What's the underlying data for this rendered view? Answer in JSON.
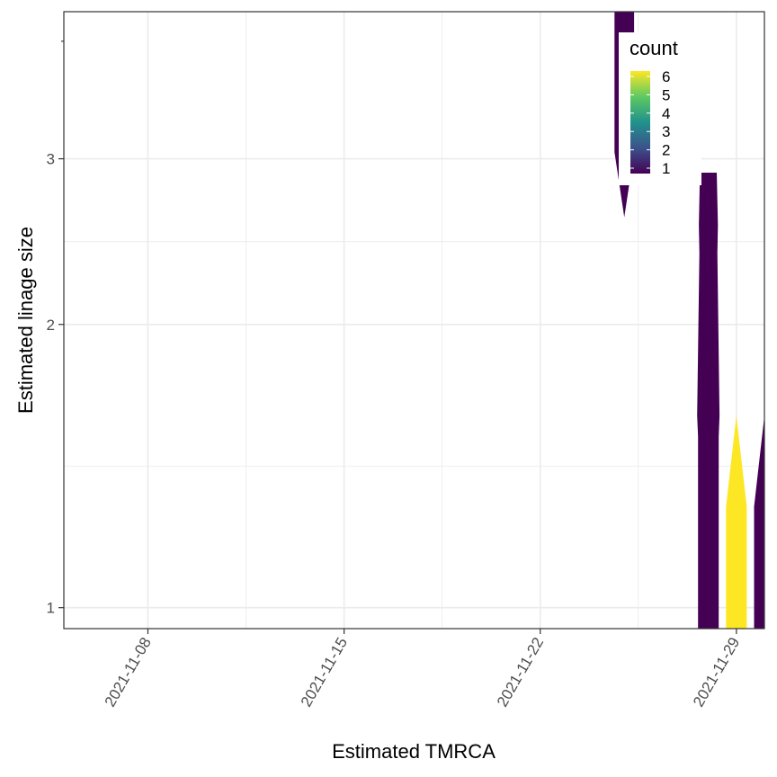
{
  "chart_data": {
    "type": "violin",
    "xlabel": "Estimated TMRCA",
    "ylabel": "Estimated linage size",
    "x_scale": "date",
    "xlim": [
      "2021-11-05",
      "2021-11-30"
    ],
    "x_ticks": [
      "2021-11-08",
      "2021-11-15",
      "2021-11-22",
      "2021-11-29"
    ],
    "y_scale": "log",
    "ylim": [
      0.95,
      4.3
    ],
    "y_ticks": [
      1,
      2,
      3
    ],
    "grid": true,
    "legend": {
      "title": "count",
      "position": "top-right inside",
      "labels": [
        "6",
        "5",
        "4",
        "3",
        "2",
        "1"
      ],
      "range": [
        1,
        6
      ],
      "palette": [
        "#440154",
        "#3b528b",
        "#21918c",
        "#5ec962",
        "#fde725"
      ]
    },
    "series": [
      {
        "date": "2021-11-25",
        "count": 1,
        "color": "#440154",
        "profile": [
          [
            2.6,
            0
          ],
          [
            3.05,
            0.35
          ],
          [
            3.1,
            0.35
          ],
          [
            4.3,
            0.35
          ]
        ]
      },
      {
        "date": "2021-11-28",
        "count": 1,
        "color": "#440154",
        "profile": [
          [
            0.95,
            0.37
          ],
          [
            1.28,
            0.37
          ],
          [
            1.52,
            0.37
          ],
          [
            1.6,
            0.4
          ],
          [
            2.38,
            0.32
          ],
          [
            2.55,
            0.34
          ],
          [
            2.9,
            0.3
          ]
        ]
      },
      {
        "date": "2021-11-29",
        "count": 6,
        "color": "#fde725",
        "profile": [
          [
            0.95,
            0.37
          ],
          [
            1.28,
            0.37
          ],
          [
            1.6,
            0
          ]
        ]
      },
      {
        "date": "2021-11-30",
        "count": 1,
        "color": "#440154",
        "profile": [
          [
            0.95,
            0.37
          ],
          [
            1.28,
            0.37
          ],
          [
            1.6,
            0
          ]
        ]
      }
    ]
  }
}
